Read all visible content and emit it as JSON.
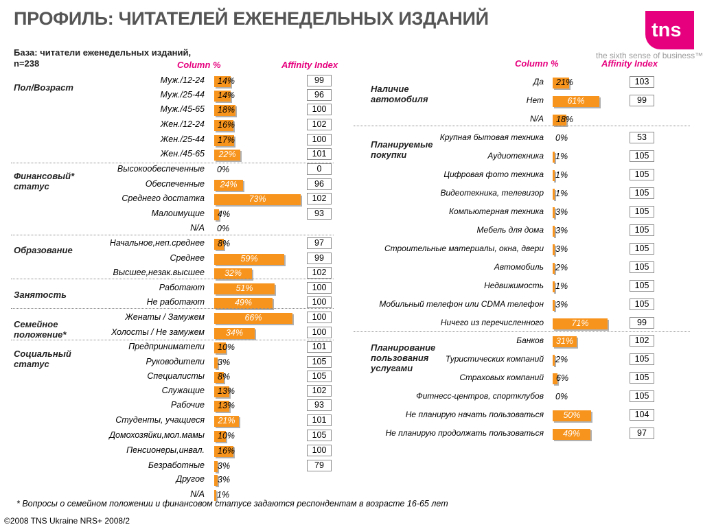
{
  "title": "ПРОФИЛЬ: ЧИТАТЕЛЕЙ ЕЖЕНЕДЕЛЬНЫХ ИЗДАНИЙ",
  "logo": {
    "text": "tns",
    "tagline": "the sixth sense of business™",
    "color": "#e6007e"
  },
  "base_line1": "База: читатели еженедельных изданий,",
  "base_line2": "n=238",
  "column_header": "Column %",
  "affinity_header": "Affinity Index",
  "footnote": "* Вопросы о семейном положении и финансовом статусе задаются респондентам в возрасте 16-65 лет",
  "copyright": "©2008 TNS Ukraine  NRS+ 2008/2",
  "colors": {
    "bar": "#f7941d",
    "accent": "#e6007e"
  },
  "chart_data": [
    {
      "type": "bar",
      "title": "",
      "sections": [
        {
          "name": "Пол/Возраст",
          "rows": [
            {
              "label": "Муж./12-24",
              "value": 14,
              "affinity": "99"
            },
            {
              "label": "Муж./25-44",
              "value": 14,
              "affinity": "96"
            },
            {
              "label": "Муж./45-65",
              "value": 18,
              "affinity": "100"
            },
            {
              "label": "Жен./12-24",
              "value": 16,
              "affinity": "102"
            },
            {
              "label": "Жен./25-44",
              "value": 17,
              "affinity": "100"
            },
            {
              "label": "Жен./45-65",
              "value": 22,
              "affinity": "101"
            }
          ]
        },
        {
          "name": "Финансовый* статус",
          "rows": [
            {
              "label": "Высокообеспеченные",
              "value": 0,
              "affinity": "0"
            },
            {
              "label": "Обеспеченные",
              "value": 24,
              "affinity": "96"
            },
            {
              "label": "Среднего достатка",
              "value": 73,
              "affinity": "102"
            },
            {
              "label": "Малоимущие",
              "value": 4,
              "affinity": "93"
            },
            {
              "label": "N/A",
              "value": 0,
              "affinity": ""
            }
          ]
        },
        {
          "name": "Образование",
          "rows": [
            {
              "label": "Начальное,неп.среднее",
              "value": 8,
              "affinity": "97"
            },
            {
              "label": "Среднее",
              "value": 59,
              "affinity": "99"
            },
            {
              "label": "Высшее,незак.высшее",
              "value": 32,
              "affinity": "102"
            }
          ]
        },
        {
          "name": "Занятость",
          "rows": [
            {
              "label": "Работают",
              "value": 51,
              "affinity": "100"
            },
            {
              "label": "Не работают",
              "value": 49,
              "affinity": "100"
            }
          ]
        },
        {
          "name": "Семейное положение*",
          "rows": [
            {
              "label": "Женаты / Замужем",
              "value": 66,
              "affinity": "100"
            },
            {
              "label": "Холосты / Не замужем",
              "value": 34,
              "affinity": "100"
            }
          ]
        },
        {
          "name": "Социальный статус",
          "rows": [
            {
              "label": "Предприниматели",
              "value": 10,
              "affinity": "101"
            },
            {
              "label": "Руководители",
              "value": 3,
              "affinity": "105"
            },
            {
              "label": "Специалисты",
              "value": 8,
              "affinity": "105"
            },
            {
              "label": "Служащие",
              "value": 13,
              "affinity": "102"
            },
            {
              "label": "Рабочие",
              "value": 13,
              "affinity": "93"
            },
            {
              "label": "Студенты, учащиеся",
              "value": 21,
              "affinity": "101"
            },
            {
              "label": "Домохозяйки,мол.мамы",
              "value": 10,
              "affinity": "105"
            },
            {
              "label": "Пенсионеры,инвал.",
              "value": 16,
              "affinity": "100"
            },
            {
              "label": "Безработные",
              "value": 3,
              "affinity": "79"
            },
            {
              "label": "Другое",
              "value": 3,
              "affinity": ""
            },
            {
              "label": "N/A",
              "value": 1,
              "affinity": ""
            }
          ]
        }
      ]
    },
    {
      "type": "bar",
      "title": "",
      "sections": [
        {
          "name": "Наличие автомобиля",
          "rows": [
            {
              "label": "Да",
              "value": 21,
              "affinity": "103"
            },
            {
              "label": "Нет",
              "value": 61,
              "affinity": "99"
            },
            {
              "label": "N/A",
              "value": 18,
              "affinity": ""
            }
          ]
        },
        {
          "name": "Планируемые покупки",
          "rows": [
            {
              "label": "Крупная бытовая техника",
              "value": 0,
              "affinity": "53"
            },
            {
              "label": "Аудиотехника",
              "value": 1,
              "affinity": "105"
            },
            {
              "label": "Цифровая фото техника",
              "value": 1,
              "affinity": "105"
            },
            {
              "label": "Видеотехника, телевизор",
              "value": 1,
              "affinity": "105"
            },
            {
              "label": "Компьютерная техника",
              "value": 3,
              "affinity": "105"
            },
            {
              "label": "Мебель для дома",
              "value": 3,
              "affinity": "105"
            },
            {
              "label": "Строительные материалы, окна, двери",
              "value": 3,
              "affinity": "105"
            },
            {
              "label": "Автомобиль",
              "value": 2,
              "affinity": "105"
            },
            {
              "label": "Недвижимость",
              "value": 1,
              "affinity": "105"
            },
            {
              "label": "Мобильный телефон или CDMA телефон",
              "value": 3,
              "affinity": "105"
            },
            {
              "label": "Ничего из перечисленного",
              "value": 71,
              "affinity": "99"
            }
          ]
        },
        {
          "name": "Планирование пользования услугами",
          "rows": [
            {
              "label": "Банков",
              "value": 31,
              "affinity": "102"
            },
            {
              "label": "Туристических компаний",
              "value": 2,
              "affinity": "105"
            },
            {
              "label": "Страховых компаний",
              "value": 6,
              "affinity": "105"
            },
            {
              "label": "Фитнесс-центров, спортклубов",
              "value": 0,
              "affinity": "105"
            },
            {
              "label": "Не планирую начать пользоваться",
              "value": 50,
              "affinity": "104"
            },
            {
              "label": "Не планирую продолжать пользоваться",
              "value": 49,
              "affinity": "97"
            }
          ]
        }
      ]
    }
  ]
}
